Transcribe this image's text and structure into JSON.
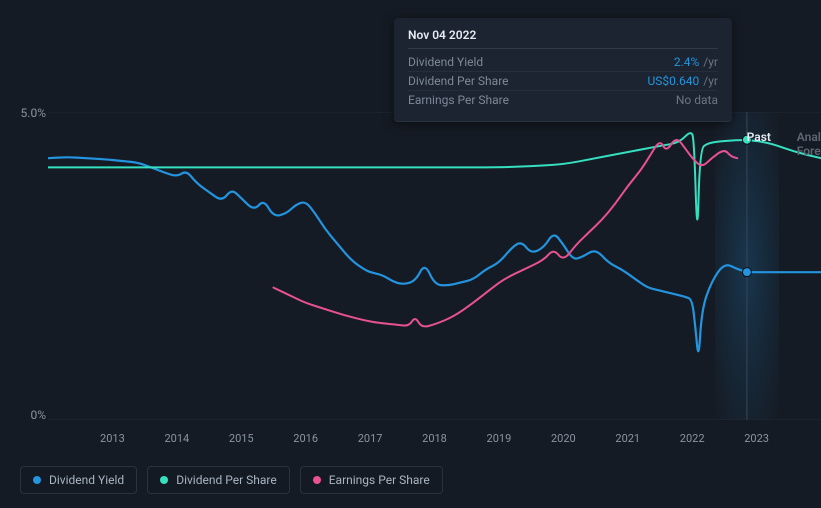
{
  "chart": {
    "type": "line",
    "background_color": "#151b24",
    "plot_background": "#151b24",
    "grid_color": "#222a36",
    "axis_text_color": "#8a93a1",
    "font_family": "sans-serif",
    "axis_fontsize": 11,
    "legend_fontsize": 12,
    "tooltip_fontsize": 12,
    "x_axis": {
      "min_year": 2012.0,
      "max_year": 2024.0,
      "ticks": [
        2013,
        2014,
        2015,
        2016,
        2017,
        2018,
        2019,
        2020,
        2021,
        2022,
        2023
      ]
    },
    "y_axis": {
      "min": 0,
      "max": 5.0,
      "ticks": [
        0,
        5.0
      ],
      "tick_labels": [
        "0%",
        "5.0%"
      ]
    },
    "hover": {
      "year": 2022.85,
      "band_width_years": 1.0,
      "date_label": "Nov 04 2022",
      "rows": [
        {
          "label": "Dividend Yield",
          "value": "2.4%",
          "unit": "/yr",
          "color": "#2394df"
        },
        {
          "label": "Dividend Per Share",
          "value": "US$0.640",
          "unit": "/yr",
          "color": "#2394df"
        },
        {
          "label": "Earnings Per Share",
          "value": "No data",
          "nodata": true
        }
      ],
      "dot_dy": {
        "value": 2.4,
        "color": "#2394df"
      },
      "dot_dps": {
        "value": 4.55,
        "color": "#35e0c0"
      }
    },
    "past_marker": {
      "year": 2022.6,
      "label": "Past"
    },
    "forecast_marker": {
      "year": 2023.55,
      "label": "Analysts Fore"
    },
    "series": [
      {
        "name": "Dividend Yield",
        "color": "#2394df",
        "line_width": 2.2,
        "points": [
          [
            2012.0,
            4.25
          ],
          [
            2012.3,
            4.27
          ],
          [
            2012.6,
            4.25
          ],
          [
            2012.9,
            4.23
          ],
          [
            2013.1,
            4.21
          ],
          [
            2013.4,
            4.18
          ],
          [
            2013.6,
            4.1
          ],
          [
            2013.8,
            4.02
          ],
          [
            2014.0,
            3.95
          ],
          [
            2014.15,
            4.05
          ],
          [
            2014.3,
            3.85
          ],
          [
            2014.5,
            3.7
          ],
          [
            2014.7,
            3.55
          ],
          [
            2014.85,
            3.75
          ],
          [
            2015.0,
            3.6
          ],
          [
            2015.2,
            3.4
          ],
          [
            2015.35,
            3.58
          ],
          [
            2015.5,
            3.3
          ],
          [
            2015.7,
            3.35
          ],
          [
            2015.85,
            3.5
          ],
          [
            2016.0,
            3.55
          ],
          [
            2016.15,
            3.35
          ],
          [
            2016.3,
            3.1
          ],
          [
            2016.5,
            2.85
          ],
          [
            2016.7,
            2.6
          ],
          [
            2016.9,
            2.45
          ],
          [
            2017.0,
            2.4
          ],
          [
            2017.2,
            2.35
          ],
          [
            2017.35,
            2.25
          ],
          [
            2017.5,
            2.2
          ],
          [
            2017.7,
            2.25
          ],
          [
            2017.85,
            2.55
          ],
          [
            2018.0,
            2.2
          ],
          [
            2018.2,
            2.18
          ],
          [
            2018.4,
            2.23
          ],
          [
            2018.6,
            2.28
          ],
          [
            2018.8,
            2.45
          ],
          [
            2019.0,
            2.55
          ],
          [
            2019.2,
            2.8
          ],
          [
            2019.35,
            2.9
          ],
          [
            2019.5,
            2.7
          ],
          [
            2019.7,
            2.8
          ],
          [
            2019.85,
            3.05
          ],
          [
            2020.0,
            2.85
          ],
          [
            2020.15,
            2.6
          ],
          [
            2020.3,
            2.65
          ],
          [
            2020.5,
            2.78
          ],
          [
            2020.7,
            2.55
          ],
          [
            2020.9,
            2.45
          ],
          [
            2021.1,
            2.3
          ],
          [
            2021.3,
            2.15
          ],
          [
            2021.5,
            2.1
          ],
          [
            2021.7,
            2.05
          ],
          [
            2021.9,
            2.0
          ],
          [
            2022.0,
            1.95
          ],
          [
            2022.05,
            1.5
          ],
          [
            2022.1,
            0.95
          ],
          [
            2022.15,
            1.8
          ],
          [
            2022.3,
            2.25
          ],
          [
            2022.5,
            2.55
          ],
          [
            2022.7,
            2.45
          ],
          [
            2022.85,
            2.4
          ],
          [
            2023.1,
            2.4
          ],
          [
            2023.5,
            2.4
          ],
          [
            2024.0,
            2.4
          ]
        ]
      },
      {
        "name": "Dividend Per Share",
        "color": "#35e0c0",
        "line_width": 2.0,
        "points": [
          [
            2012.0,
            4.1
          ],
          [
            2014.0,
            4.1
          ],
          [
            2016.0,
            4.1
          ],
          [
            2018.0,
            4.1
          ],
          [
            2019.0,
            4.1
          ],
          [
            2019.5,
            4.12
          ],
          [
            2020.0,
            4.15
          ],
          [
            2020.5,
            4.25
          ],
          [
            2021.0,
            4.35
          ],
          [
            2021.5,
            4.45
          ],
          [
            2021.8,
            4.5
          ],
          [
            2021.98,
            4.7
          ],
          [
            2022.03,
            4.55
          ],
          [
            2022.08,
            2.85
          ],
          [
            2022.12,
            4.4
          ],
          [
            2022.25,
            4.5
          ],
          [
            2022.5,
            4.53
          ],
          [
            2022.85,
            4.55
          ],
          [
            2023.2,
            4.5
          ],
          [
            2023.6,
            4.35
          ],
          [
            2024.0,
            4.25
          ]
        ]
      },
      {
        "name": "Earnings Per Share",
        "color": "#e85193",
        "line_width": 2.0,
        "points": [
          [
            2015.5,
            2.15
          ],
          [
            2015.8,
            2.0
          ],
          [
            2016.0,
            1.9
          ],
          [
            2016.3,
            1.8
          ],
          [
            2016.6,
            1.7
          ],
          [
            2016.9,
            1.62
          ],
          [
            2017.1,
            1.58
          ],
          [
            2017.4,
            1.55
          ],
          [
            2017.6,
            1.52
          ],
          [
            2017.7,
            1.68
          ],
          [
            2017.8,
            1.5
          ],
          [
            2018.0,
            1.55
          ],
          [
            2018.3,
            1.68
          ],
          [
            2018.6,
            1.9
          ],
          [
            2018.9,
            2.15
          ],
          [
            2019.1,
            2.3
          ],
          [
            2019.4,
            2.45
          ],
          [
            2019.7,
            2.6
          ],
          [
            2019.85,
            2.78
          ],
          [
            2020.0,
            2.58
          ],
          [
            2020.2,
            2.85
          ],
          [
            2020.4,
            3.05
          ],
          [
            2020.6,
            3.25
          ],
          [
            2020.8,
            3.5
          ],
          [
            2021.0,
            3.8
          ],
          [
            2021.2,
            4.05
          ],
          [
            2021.35,
            4.3
          ],
          [
            2021.5,
            4.55
          ],
          [
            2021.6,
            4.35
          ],
          [
            2021.75,
            4.6
          ],
          [
            2021.9,
            4.4
          ],
          [
            2022.0,
            4.25
          ],
          [
            2022.15,
            4.1
          ],
          [
            2022.3,
            4.25
          ],
          [
            2022.5,
            4.4
          ],
          [
            2022.6,
            4.28
          ],
          [
            2022.7,
            4.25
          ]
        ]
      }
    ],
    "legend": [
      {
        "label": "Dividend Yield",
        "color": "#2394df"
      },
      {
        "label": "Dividend Per Share",
        "color": "#35e0c0"
      },
      {
        "label": "Earnings Per Share",
        "color": "#e85193"
      }
    ]
  }
}
